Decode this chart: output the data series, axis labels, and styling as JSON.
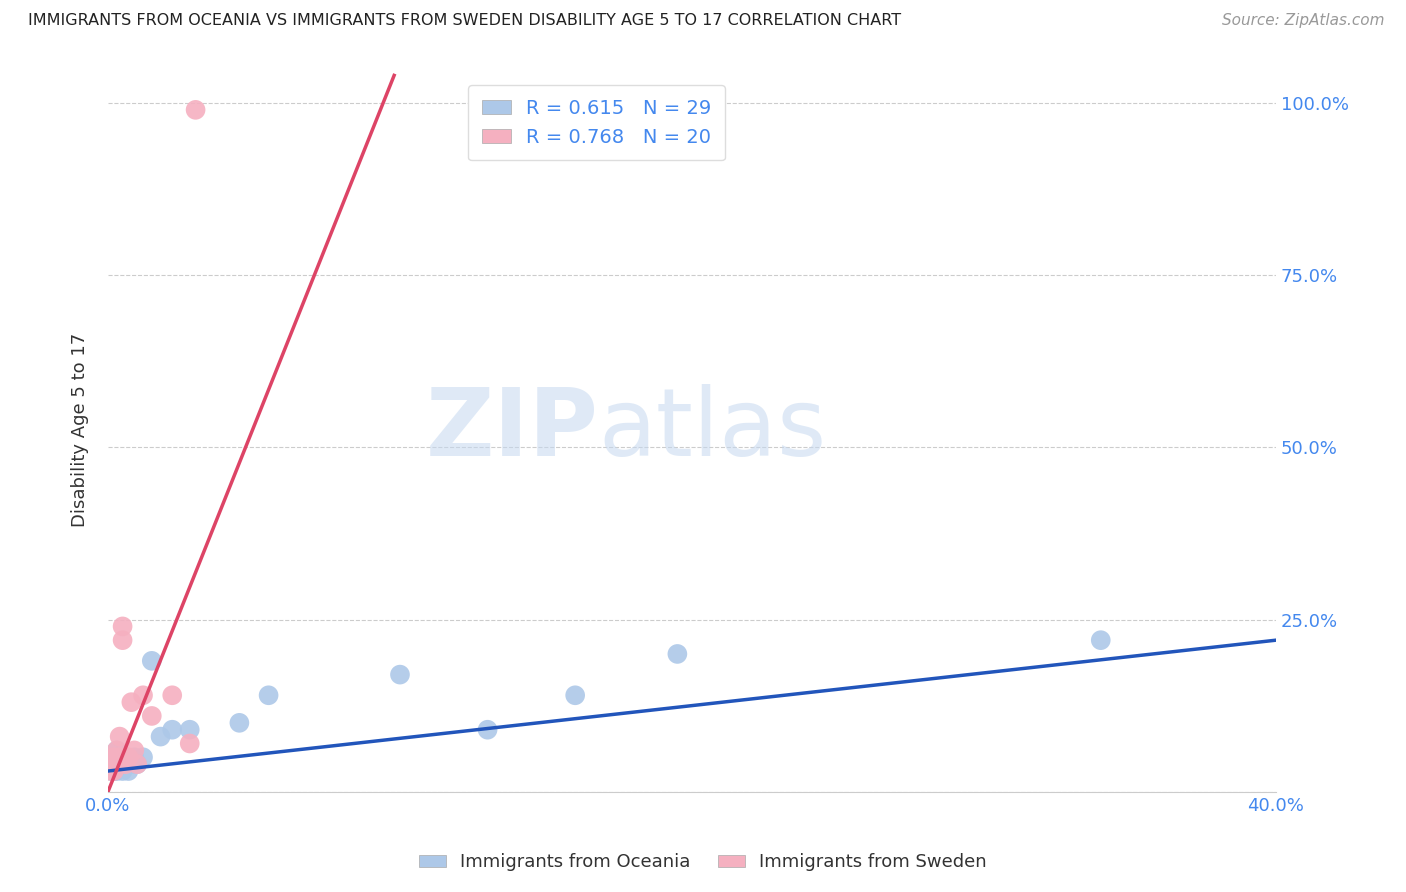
{
  "title": "IMMIGRANTS FROM OCEANIA VS IMMIGRANTS FROM SWEDEN DISABILITY AGE 5 TO 17 CORRELATION CHART",
  "source": "Source: ZipAtlas.com",
  "ylabel": "Disability Age 5 to 17",
  "watermark_zip": "ZIP",
  "watermark_atlas": "atlas",
  "xlim": [
    0.0,
    0.4
  ],
  "ylim": [
    0.0,
    1.05
  ],
  "yticks": [
    0.0,
    0.25,
    0.5,
    0.75,
    1.0
  ],
  "ytick_labels": [
    "",
    "25.0%",
    "50.0%",
    "75.0%",
    "100.0%"
  ],
  "xticks": [
    0.0,
    0.1,
    0.2,
    0.3,
    0.4
  ],
  "xtick_labels": [
    "0.0%",
    "",
    "",
    "",
    "40.0%"
  ],
  "legend1_label": "R = 0.615   N = 29",
  "legend2_label": "R = 0.768   N = 20",
  "legend_bottom_label1": "Immigrants from Oceania",
  "legend_bottom_label2": "Immigrants from Sweden",
  "oceania_color": "#adc8e8",
  "sweden_color": "#f5b0c0",
  "oceania_line_color": "#2255bb",
  "sweden_line_color": "#dd4466",
  "background_color": "#ffffff",
  "grid_color": "#cccccc",
  "oceania_x": [
    0.001,
    0.001,
    0.001,
    0.002,
    0.002,
    0.003,
    0.003,
    0.004,
    0.004,
    0.005,
    0.005,
    0.006,
    0.006,
    0.007,
    0.008,
    0.009,
    0.01,
    0.012,
    0.015,
    0.018,
    0.022,
    0.028,
    0.055,
    0.1,
    0.13,
    0.16,
    0.195,
    0.34,
    0.045
  ],
  "oceania_y": [
    0.03,
    0.04,
    0.05,
    0.03,
    0.04,
    0.03,
    0.06,
    0.04,
    0.05,
    0.03,
    0.04,
    0.05,
    0.04,
    0.03,
    0.04,
    0.05,
    0.04,
    0.05,
    0.19,
    0.08,
    0.09,
    0.09,
    0.14,
    0.17,
    0.09,
    0.14,
    0.2,
    0.22,
    0.1
  ],
  "sweden_x": [
    0.001,
    0.001,
    0.002,
    0.002,
    0.003,
    0.003,
    0.004,
    0.004,
    0.005,
    0.005,
    0.006,
    0.007,
    0.008,
    0.009,
    0.01,
    0.012,
    0.015,
    0.022,
    0.028,
    0.03
  ],
  "sweden_y": [
    0.03,
    0.04,
    0.03,
    0.05,
    0.04,
    0.06,
    0.05,
    0.08,
    0.22,
    0.24,
    0.04,
    0.05,
    0.13,
    0.06,
    0.04,
    0.14,
    0.11,
    0.14,
    0.07,
    0.99
  ],
  "oceania_trend_x": [
    0.0,
    0.4
  ],
  "oceania_trend_y": [
    0.03,
    0.22
  ],
  "sweden_trend_x": [
    0.0,
    0.098
  ],
  "sweden_trend_y": [
    0.0,
    1.04
  ]
}
